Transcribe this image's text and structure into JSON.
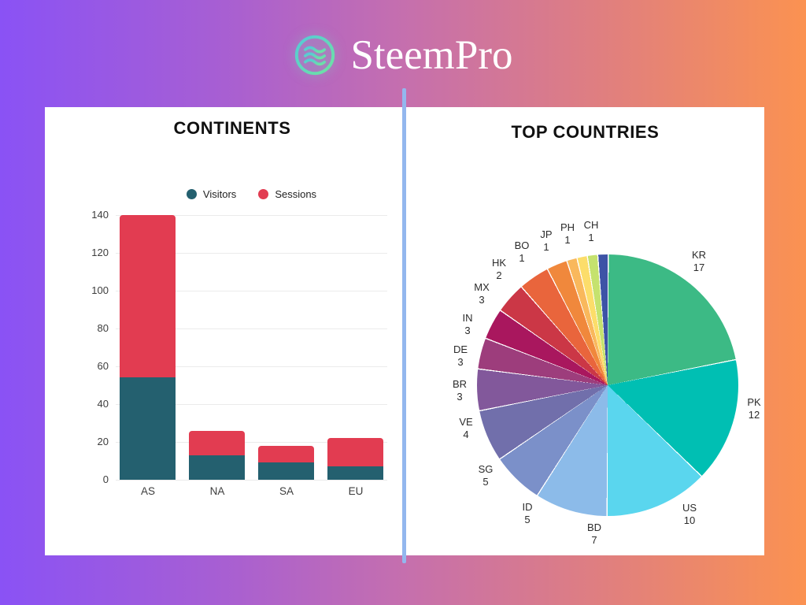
{
  "brand": {
    "name": "SteemPro",
    "icon": "waves-circle-icon"
  },
  "theme": {
    "background_gradient": [
      "#8a52f5",
      "#c56fae",
      "#fb9251"
    ],
    "panel_color": "#ffffff",
    "divider_color": "#93b7ee",
    "logo_gradient": [
      "#55c9d8",
      "#6fe3a1"
    ]
  },
  "chart_data": [
    {
      "type": "bar",
      "stacked": true,
      "title": "CONTINENTS",
      "categories": [
        "AS",
        "NA",
        "SA",
        "EU"
      ],
      "series": [
        {
          "name": "Visitors",
          "color": "#24606f",
          "values": [
            54,
            13,
            9,
            7
          ]
        },
        {
          "name": "Sessions",
          "color": "#e23c51",
          "values": [
            86,
            13,
            9,
            15
          ]
        }
      ],
      "xlabel": "",
      "ylabel": "",
      "ylim": [
        0,
        140
      ],
      "yticks": [
        0,
        20,
        40,
        60,
        80,
        100,
        120,
        140
      ],
      "grid": true,
      "legend_position": "top"
    },
    {
      "type": "pie",
      "title": "TOP COUNTRIES",
      "start_angle": "top",
      "direction": "clockwise",
      "slices": [
        {
          "label": "KR",
          "value": 17,
          "color": "#3cba85"
        },
        {
          "label": "PK",
          "value": 12,
          "color": "#00bfb3"
        },
        {
          "label": "US",
          "value": 10,
          "color": "#5ad6ee"
        },
        {
          "label": "BD",
          "value": 7,
          "color": "#8cbbe9"
        },
        {
          "label": "ID",
          "value": 5,
          "color": "#7b90c9"
        },
        {
          "label": "SG",
          "value": 5,
          "color": "#716fab"
        },
        {
          "label": "VE",
          "value": 4,
          "color": "#82589b"
        },
        {
          "label": "BR",
          "value": 3,
          "color": "#9d3d7c"
        },
        {
          "label": "DE",
          "value": 3,
          "color": "#a9175e"
        },
        {
          "label": "IN",
          "value": 3,
          "color": "#cb3746"
        },
        {
          "label": "MX",
          "value": 3,
          "color": "#e9653c"
        },
        {
          "label": "HK",
          "value": 2,
          "color": "#f0883c"
        },
        {
          "label": "BO",
          "value": 1,
          "color": "#f9b85c"
        },
        {
          "label": "JP",
          "value": 1,
          "color": "#fcdd6a"
        },
        {
          "label": "PH",
          "value": 1,
          "color": "#c5e26e"
        },
        {
          "label": "CH",
          "value": 1,
          "color": "#3d53a6"
        }
      ]
    }
  ]
}
